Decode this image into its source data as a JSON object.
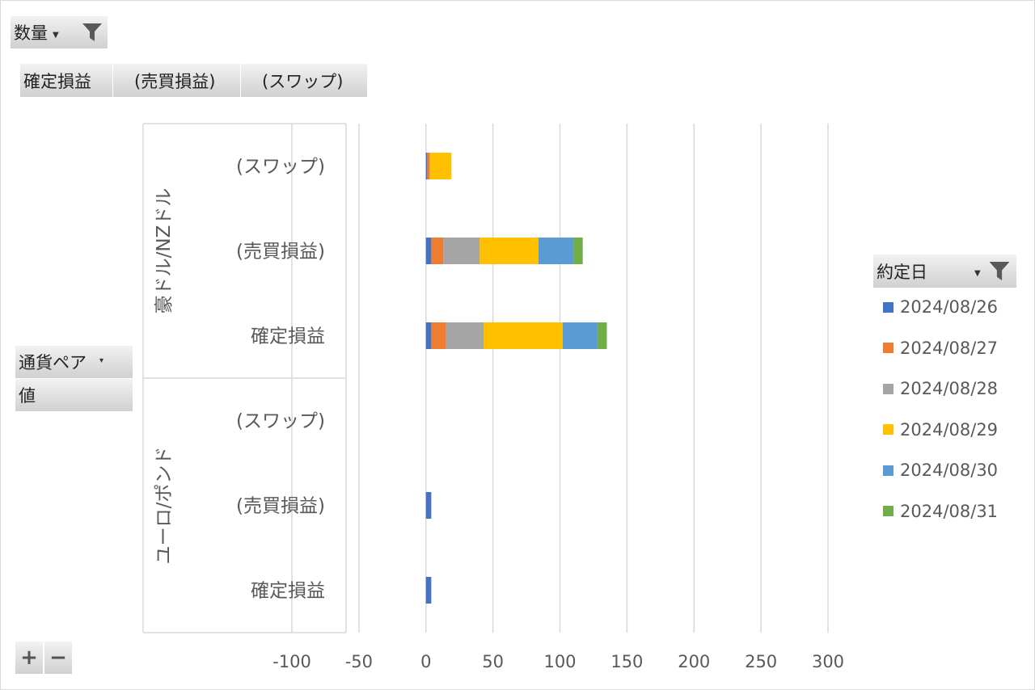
{
  "filters": {
    "report_field": "数量",
    "legend_field": "約定日",
    "axis_field": "通貨ペア",
    "values_field": "値"
  },
  "value_buttons": [
    "確定損益",
    "(売買損益)",
    "(スワップ)"
  ],
  "zoom": {
    "plus": "+",
    "minus": "−"
  },
  "chart_data": {
    "type": "bar",
    "orientation": "horizontal",
    "stacked": true,
    "title": "",
    "xlim": [
      -100,
      300
    ],
    "x_ticks": [
      "-100",
      "-50",
      "0",
      "50",
      "100",
      "150",
      "200",
      "250",
      "300"
    ],
    "grid": true,
    "legend_position": "right",
    "groups": [
      {
        "name": "豪ドル/NZドル",
        "categories": [
          "(スワップ)",
          "(売買損益)",
          "確定損益"
        ]
      },
      {
        "name": "ユーロ/ポンド",
        "categories": [
          "(スワップ)",
          "(売買損益)",
          "確定損益"
        ]
      }
    ],
    "series": [
      {
        "name": "2024/08/26",
        "color": "#4472c4",
        "values": [
          1,
          4,
          4,
          0,
          4,
          4
        ]
      },
      {
        "name": "2024/08/27",
        "color": "#ed7d31",
        "values": [
          2,
          9,
          11,
          0,
          0,
          0
        ]
      },
      {
        "name": "2024/08/28",
        "color": "#a5a5a5",
        "values": [
          0,
          27,
          28,
          0,
          0,
          0
        ]
      },
      {
        "name": "2024/08/29",
        "color": "#ffc000",
        "values": [
          16,
          44,
          59,
          0,
          0,
          0
        ]
      },
      {
        "name": "2024/08/30",
        "color": "#5b9bd5",
        "values": [
          0,
          26,
          26,
          0,
          0,
          0
        ]
      },
      {
        "name": "2024/08/31",
        "color": "#70ad47",
        "values": [
          0,
          7,
          7,
          0,
          0,
          0
        ]
      }
    ]
  }
}
